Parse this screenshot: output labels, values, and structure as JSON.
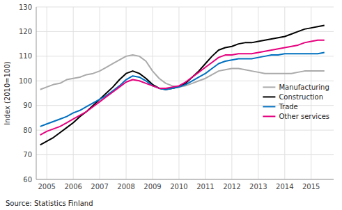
{
  "chart_data": {
    "type": "line",
    "ylabel": "Index (2010=100)",
    "source": "Source: Statistics Finland",
    "x": [
      2004.75,
      2005.0,
      2005.25,
      2005.5,
      2005.75,
      2006.0,
      2006.25,
      2006.5,
      2006.75,
      2007.0,
      2007.25,
      2007.5,
      2007.75,
      2008.0,
      2008.25,
      2008.5,
      2008.75,
      2009.0,
      2009.25,
      2009.5,
      2009.75,
      2010.0,
      2010.25,
      2010.5,
      2010.75,
      2011.0,
      2011.25,
      2011.5,
      2011.75,
      2012.0,
      2012.25,
      2012.5,
      2012.75,
      2013.0,
      2013.25,
      2013.5,
      2013.75,
      2014.0,
      2014.25,
      2014.5,
      2014.75,
      2015.0,
      2015.25,
      2015.5
    ],
    "series": [
      {
        "name": "Manufacturing",
        "color": "#aaaaaa",
        "values": [
          96.5,
          97.5,
          98.5,
          99.0,
          100.5,
          101.0,
          101.5,
          102.5,
          103.0,
          104.0,
          105.5,
          107.0,
          108.5,
          110.0,
          110.5,
          110.0,
          108.0,
          104.0,
          101.0,
          99.0,
          98.0,
          97.5,
          98.0,
          99.0,
          100.0,
          101.0,
          102.5,
          104.0,
          104.5,
          105.0,
          105.0,
          104.5,
          104.0,
          103.5,
          103.0,
          103.0,
          103.0,
          103.0,
          103.0,
          103.5,
          104.0,
          104.0,
          104.0,
          104.0
        ]
      },
      {
        "name": "Construction",
        "color": "#000000",
        "values": [
          74.0,
          75.5,
          77.0,
          79.0,
          81.0,
          83.0,
          85.5,
          87.5,
          90.0,
          92.5,
          95.0,
          97.5,
          100.5,
          103.0,
          104.0,
          103.0,
          101.0,
          98.5,
          97.0,
          96.5,
          97.0,
          97.5,
          99.0,
          101.5,
          104.0,
          107.0,
          110.0,
          112.5,
          113.5,
          114.0,
          115.0,
          115.5,
          115.5,
          116.0,
          116.5,
          117.0,
          117.5,
          118.0,
          119.0,
          120.0,
          121.0,
          121.5,
          122.0,
          122.5
        ]
      },
      {
        "name": "Trade",
        "color": "#0070c0",
        "values": [
          81.5,
          82.5,
          83.5,
          84.5,
          85.5,
          87.0,
          88.0,
          89.5,
          91.0,
          92.5,
          94.0,
          96.0,
          98.0,
          100.5,
          102.0,
          101.5,
          100.0,
          98.0,
          97.0,
          96.5,
          97.0,
          97.5,
          98.5,
          100.0,
          101.5,
          103.0,
          105.0,
          107.0,
          108.0,
          108.5,
          109.0,
          109.0,
          109.0,
          109.5,
          110.0,
          110.5,
          110.5,
          111.0,
          111.0,
          111.0,
          111.0,
          111.0,
          111.0,
          111.5
        ]
      },
      {
        "name": "Other services",
        "color": "#e6007e",
        "values": [
          78.0,
          79.5,
          80.5,
          81.5,
          83.0,
          84.5,
          86.0,
          87.5,
          89.5,
          91.5,
          93.5,
          95.5,
          97.5,
          99.5,
          100.5,
          100.0,
          99.0,
          98.0,
          97.0,
          97.0,
          97.5,
          98.0,
          99.5,
          101.5,
          103.5,
          105.5,
          107.5,
          109.5,
          110.5,
          110.5,
          111.0,
          111.0,
          111.0,
          111.5,
          112.0,
          112.5,
          113.0,
          113.5,
          114.0,
          114.5,
          115.5,
          116.0,
          116.5,
          116.5
        ]
      }
    ],
    "xlim": [
      2004.6,
      2015.85
    ],
    "xticks": [
      2005,
      2006,
      2007,
      2008,
      2009,
      2010,
      2011,
      2012,
      2013,
      2014,
      2015
    ],
    "ylim": [
      60,
      130
    ],
    "yticks": [
      60,
      70,
      80,
      90,
      100,
      110,
      120,
      130
    ],
    "grid": true,
    "legend": "right"
  }
}
